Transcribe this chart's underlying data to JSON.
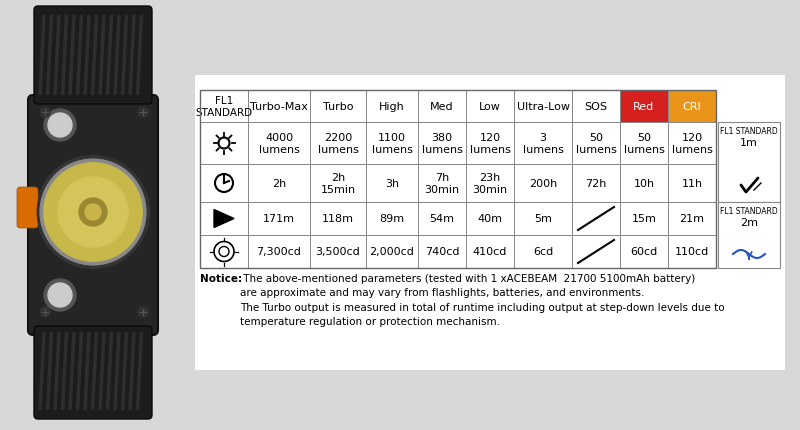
{
  "bg_color": "#e0e0e0",
  "col_headers": [
    "FL1\nSTANDARD",
    "Turbo-Max",
    "Turbo",
    "High",
    "Med",
    "Low",
    "Ultra-Low",
    "SOS",
    "Red",
    "CRI"
  ],
  "col_header_bg": [
    "#ffffff",
    "#ffffff",
    "#ffffff",
    "#ffffff",
    "#ffffff",
    "#ffffff",
    "#ffffff",
    "#ffffff",
    "#d62020",
    "#e8951a"
  ],
  "col_header_fg": [
    "#000000",
    "#000000",
    "#000000",
    "#000000",
    "#000000",
    "#000000",
    "#000000",
    "#000000",
    "#ffffff",
    "#ffffff"
  ],
  "lumens_row": [
    "4000\nlumens",
    "2200\nlumens",
    "1100\nlumens",
    "380\nlumens",
    "120\nlumens",
    "3\nlumens",
    "50\nlumens",
    "50\nlumens",
    "120\nlumens"
  ],
  "time_row": [
    "2h",
    "2h\n15min",
    "3h",
    "7h\n30min",
    "23h\n30min",
    "200h",
    "72h",
    "10h",
    "11h"
  ],
  "distance_row": [
    "171m",
    "118m",
    "89m",
    "54m",
    "40m",
    "5m",
    "",
    "15m",
    "21m"
  ],
  "candela_row": [
    "7,300cd",
    "3,500cd",
    "2,000cd",
    "740cd",
    "410cd",
    "6cd",
    "",
    "60cd",
    "110cd"
  ],
  "notice_bold": "Notice:",
  "notice_text": " The above-mentioned parameters (tested with 1 xACEBEAM  21700 5100mAh battery)\nare approximate and may vary from flashlights, batteries, and environments.\nThe Turbo output is measured in total of runtime including output at step-down levels due to\ntemperature regulation or protection mechanism."
}
